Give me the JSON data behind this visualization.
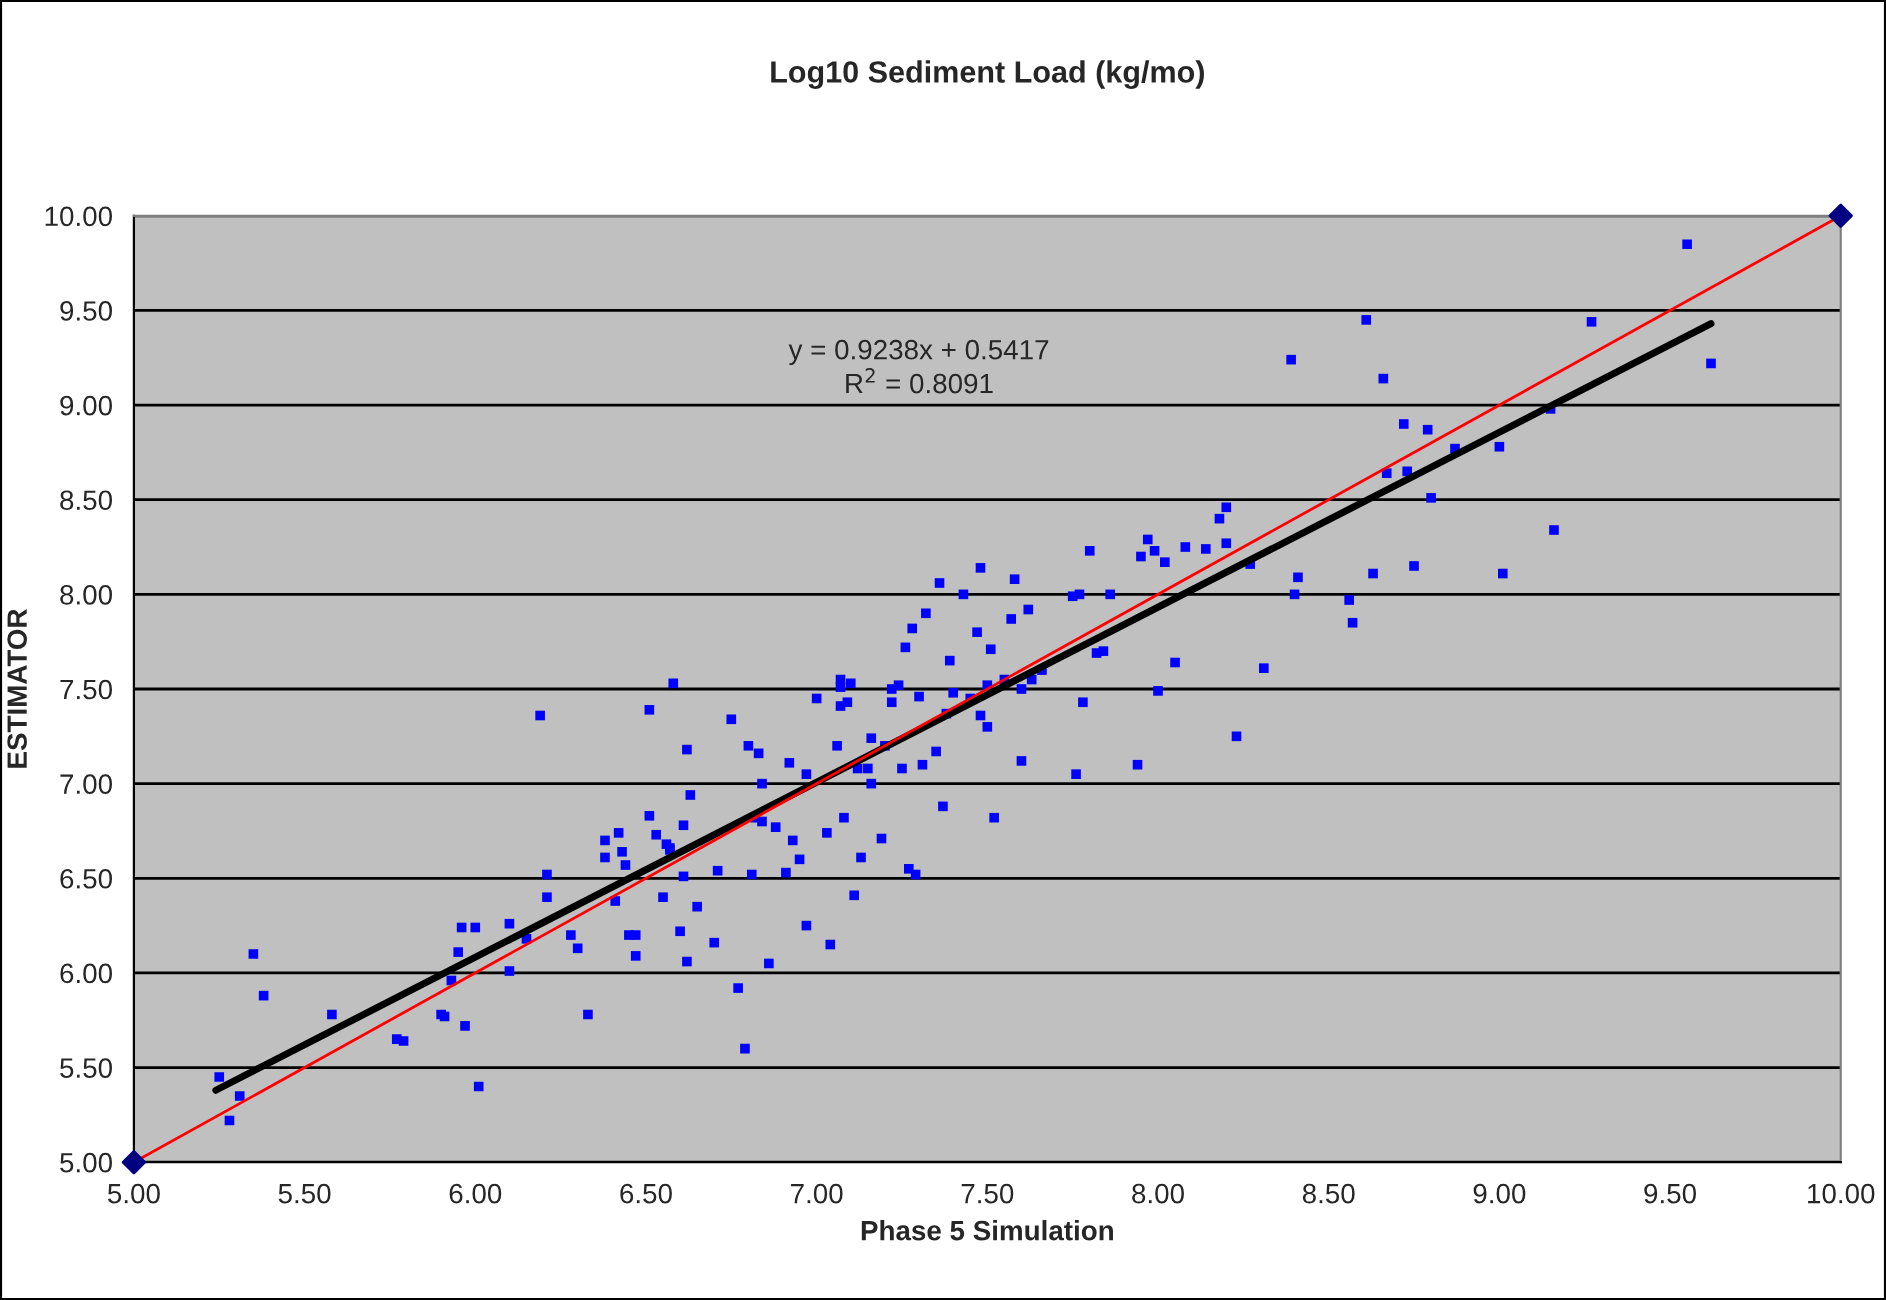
{
  "chart_data": {
    "type": "scatter",
    "title": "Log10 Sediment Load (kg/mo)",
    "xlabel": "Phase 5 Simulation",
    "ylabel": "ESTIMATOR",
    "xlim": [
      5,
      10
    ],
    "ylim": [
      5,
      10
    ],
    "xticks": [
      {
        "value": 5,
        "label": "5.00"
      },
      {
        "value": 5.5,
        "label": "5.50"
      },
      {
        "value": 6,
        "label": "6.00"
      },
      {
        "value": 6.5,
        "label": "6.50"
      },
      {
        "value": 7,
        "label": "7.00"
      },
      {
        "value": 7.5,
        "label": "7.50"
      },
      {
        "value": 8,
        "label": "8.00"
      },
      {
        "value": 8.5,
        "label": "8.50"
      },
      {
        "value": 9,
        "label": "9.00"
      },
      {
        "value": 9.5,
        "label": "9.50"
      },
      {
        "value": 10,
        "label": "10.00"
      }
    ],
    "yticks": [
      {
        "value": 5,
        "label": "5.00"
      },
      {
        "value": 5.5,
        "label": "5.50"
      },
      {
        "value": 6,
        "label": "6.00"
      },
      {
        "value": 6.5,
        "label": "6.50"
      },
      {
        "value": 7,
        "label": "7.00"
      },
      {
        "value": 7.5,
        "label": "7.50"
      },
      {
        "value": 8,
        "label": "8.00"
      },
      {
        "value": 8.5,
        "label": "8.50"
      },
      {
        "value": 9,
        "label": "9.00"
      },
      {
        "value": 9.5,
        "label": "9.50"
      },
      {
        "value": 10,
        "label": "10.00"
      }
    ],
    "grid": "y",
    "marker": "square",
    "annotations": [
      "y = 0.9238x + 0.5417",
      "R$^{2}$ = 0.8091"
    ],
    "series": [
      {
        "color": "#0000ff",
        "x": [
          5.25,
          5.28,
          5.31,
          5.35,
          5.38,
          5.58,
          5.77,
          5.79,
          5.9,
          5.91,
          5.93,
          5.95,
          5.96,
          5.97,
          6.0,
          6.01,
          6.1,
          6.1,
          6.15,
          6.19,
          6.21,
          6.21,
          6.28,
          6.3,
          6.33,
          6.38,
          6.38,
          6.41,
          6.42,
          6.43,
          6.44,
          6.45,
          6.47,
          6.47,
          6.51,
          6.51,
          6.53,
          6.55,
          6.56,
          6.57,
          6.57,
          6.58,
          6.6,
          6.61,
          6.61,
          6.62,
          6.62,
          6.63,
          6.65,
          6.7,
          6.71,
          6.75,
          6.77,
          6.79,
          6.8,
          6.81,
          6.82,
          6.83,
          6.84,
          6.84,
          6.86,
          6.88,
          6.91,
          6.92,
          6.93,
          6.95,
          6.97,
          6.97,
          7.0,
          7.03,
          7.04,
          7.06,
          7.07,
          7.07,
          7.07,
          7.08,
          7.09,
          7.1,
          7.11,
          7.12,
          7.13,
          7.15,
          7.16,
          7.16,
          7.19,
          7.2,
          7.22,
          7.22,
          7.24,
          7.25,
          7.26,
          7.27,
          7.28,
          7.29,
          7.3,
          7.31,
          7.32,
          7.35,
          7.36,
          7.37,
          7.38,
          7.39,
          7.4,
          7.43,
          7.45,
          7.47,
          7.48,
          7.48,
          7.5,
          7.5,
          7.51,
          7.52,
          7.55,
          7.57,
          7.58,
          7.6,
          7.6,
          7.62,
          7.63,
          7.66,
          7.75,
          7.76,
          7.77,
          7.78,
          7.8,
          7.82,
          7.84,
          7.86,
          7.94,
          7.95,
          7.97,
          7.99,
          8.0,
          8.02,
          8.05,
          8.08,
          8.14,
          8.18,
          8.2,
          8.2,
          8.23,
          8.27,
          8.31,
          8.39,
          8.4,
          8.41,
          8.56,
          8.57,
          8.61,
          8.63,
          8.66,
          8.67,
          8.72,
          8.73,
          8.75,
          8.79,
          8.8,
          8.87,
          9.0,
          9.01,
          9.15,
          9.16,
          9.27,
          9.55,
          9.62
        ],
        "values": [
          5.45,
          5.22,
          5.35,
          6.1,
          5.88,
          5.78,
          5.65,
          5.64,
          5.78,
          5.77,
          5.96,
          6.11,
          6.24,
          5.72,
          6.24,
          5.4,
          6.01,
          6.26,
          6.18,
          7.36,
          6.52,
          6.4,
          6.2,
          6.13,
          5.78,
          6.7,
          6.61,
          6.38,
          6.74,
          6.64,
          6.57,
          6.2,
          6.09,
          6.2,
          6.83,
          7.39,
          6.73,
          6.4,
          6.68,
          6.66,
          6.65,
          7.53,
          6.22,
          6.78,
          6.51,
          6.06,
          7.18,
          6.94,
          6.35,
          6.16,
          6.54,
          7.34,
          5.92,
          5.6,
          7.2,
          6.52,
          6.82,
          7.16,
          7.0,
          6.8,
          6.05,
          6.77,
          6.53,
          7.11,
          6.7,
          6.6,
          7.05,
          6.25,
          7.45,
          6.74,
          6.15,
          7.2,
          7.41,
          7.51,
          7.55,
          6.82,
          7.43,
          7.53,
          6.41,
          7.08,
          6.61,
          7.08,
          7.24,
          7.0,
          6.71,
          7.2,
          7.5,
          7.43,
          7.52,
          7.08,
          7.72,
          6.55,
          7.82,
          6.52,
          7.46,
          7.1,
          7.9,
          7.17,
          8.06,
          6.88,
          7.37,
          7.65,
          7.48,
          8.0,
          7.45,
          7.8,
          8.14,
          7.36,
          7.3,
          7.52,
          7.71,
          6.82,
          7.55,
          7.87,
          8.08,
          7.5,
          7.12,
          7.92,
          7.55,
          7.6,
          7.99,
          7.05,
          8.0,
          7.43,
          8.23,
          7.69,
          7.7,
          8.0,
          7.1,
          8.2,
          8.29,
          8.23,
          7.49,
          8.17,
          7.64,
          8.25,
          8.24,
          8.4,
          8.46,
          8.27,
          7.25,
          8.16,
          7.61,
          9.24,
          8.0,
          8.09,
          7.97,
          7.85,
          9.45,
          8.11,
          9.14,
          8.64,
          8.9,
          8.65,
          8.15,
          8.87,
          8.51,
          8.77,
          8.78,
          8.11,
          8.98,
          8.34,
          9.44,
          9.85,
          9.22
        ]
      },
      {
        "type": "line",
        "color": "#000000",
        "marker": "none",
        "x": [
          5.24,
          9.62
        ],
        "values": [
          5.38,
          9.43
        ]
      },
      {
        "type": "line",
        "color": "#ff0000",
        "marker": "none",
        "x": [
          5,
          10
        ],
        "values": [
          5,
          10
        ]
      },
      {
        "type": "scatter",
        "color": "#000080",
        "marker": "diamond",
        "x": [
          5,
          10
        ],
        "values": [
          5,
          10
        ]
      }
    ]
  }
}
